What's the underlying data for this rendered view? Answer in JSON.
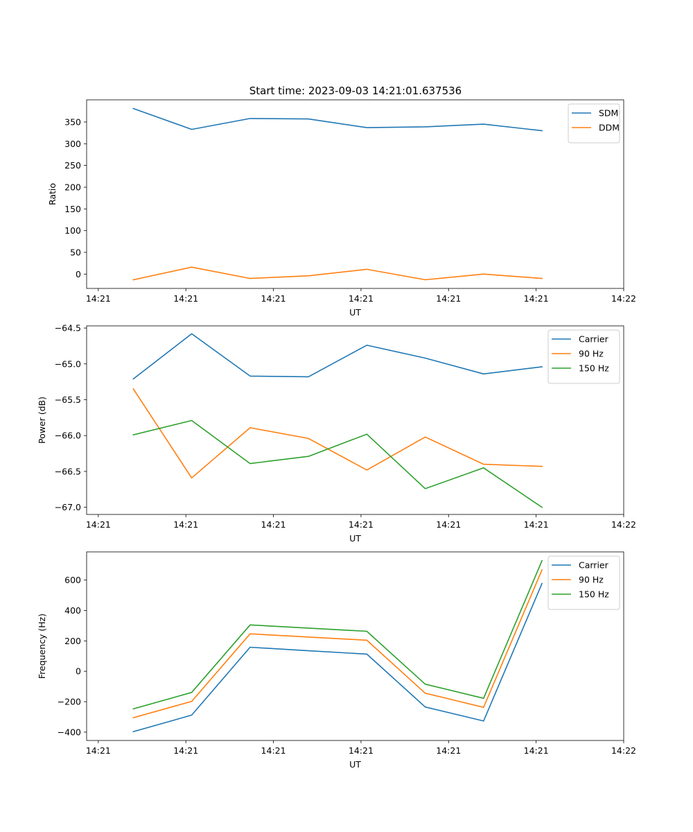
{
  "figure_title": "Start time: 2023-09-03 14:21:01.637536",
  "chart_data": [
    {
      "type": "line",
      "title": "Start time: 2023-09-03 14:21:01.637536",
      "xlabel": "UT",
      "ylabel": "Ratio",
      "x": [
        1,
        2,
        3,
        4,
        5,
        6,
        7,
        8
      ],
      "xlim": [
        0.2,
        9.4
      ],
      "xticks": [
        0.4,
        1.9,
        3.4,
        4.9,
        6.4,
        7.9,
        9.4
      ],
      "xtick_labels": [
        "14:21",
        "14:21",
        "14:21",
        "14:21",
        "14:21",
        "14:21",
        "14:22"
      ],
      "ylim": [
        -33,
        401
      ],
      "yticks": [
        0,
        50,
        100,
        150,
        200,
        250,
        300,
        350
      ],
      "ytick_labels": [
        "0",
        "50",
        "100",
        "150",
        "200",
        "250",
        "300",
        "350"
      ],
      "legend_position": "top-right",
      "series": [
        {
          "name": "SDM",
          "color": "#1f77b4",
          "values": [
            381,
            333,
            358,
            357,
            337,
            339,
            345,
            330
          ]
        },
        {
          "name": "DDM",
          "color": "#ff7f0e",
          "values": [
            -13,
            16,
            -10,
            -4,
            11,
            -13,
            0,
            -10
          ]
        }
      ]
    },
    {
      "type": "line",
      "title": "",
      "xlabel": "UT",
      "ylabel": "Power (dB)",
      "x": [
        1,
        2,
        3,
        4,
        5,
        6,
        7,
        8
      ],
      "xlim": [
        0.2,
        9.4
      ],
      "xticks": [
        0.4,
        1.9,
        3.4,
        4.9,
        6.4,
        7.9,
        9.4
      ],
      "xtick_labels": [
        "14:21",
        "14:21",
        "14:21",
        "14:21",
        "14:21",
        "14:21",
        "14:22"
      ],
      "ylim": [
        -67.1,
        -64.47
      ],
      "yticks": [
        -67.0,
        -66.5,
        -66.0,
        -65.5,
        -65.0,
        -64.5
      ],
      "ytick_labels": [
        "−67.0",
        "−66.5",
        "−66.0",
        "−65.5",
        "−65.0",
        "−64.5"
      ],
      "legend_position": "top-right",
      "series": [
        {
          "name": "Carrier",
          "color": "#1f77b4",
          "values": [
            -65.21,
            -64.58,
            -65.17,
            -65.18,
            -64.74,
            -64.92,
            -65.14,
            -65.04
          ]
        },
        {
          "name": "90 Hz",
          "color": "#ff7f0e",
          "values": [
            -65.35,
            -66.59,
            -65.89,
            -66.04,
            -66.48,
            -66.02,
            -66.4,
            -66.43
          ]
        },
        {
          "name": "150 Hz",
          "color": "#2ca02c",
          "values": [
            -65.99,
            -65.79,
            -66.39,
            -66.29,
            -65.98,
            -66.74,
            -66.45,
            -67.0
          ]
        }
      ]
    },
    {
      "type": "line",
      "title": "",
      "xlabel": "UT",
      "ylabel": "Frequency (Hz)",
      "x": [
        1,
        2,
        3,
        4,
        5,
        6,
        7,
        8
      ],
      "xlim": [
        0.2,
        9.4
      ],
      "xticks": [
        0.4,
        1.9,
        3.4,
        4.9,
        6.4,
        7.9,
        9.4
      ],
      "xtick_labels": [
        "14:21",
        "14:21",
        "14:21",
        "14:21",
        "14:21",
        "14:21",
        "14:22"
      ],
      "ylim": [
        -455,
        785
      ],
      "yticks": [
        -400,
        -200,
        0,
        200,
        400,
        600
      ],
      "ytick_labels": [
        "−400",
        "−200",
        "0",
        "200",
        "400",
        "600"
      ],
      "legend_position": "top-right",
      "series": [
        {
          "name": "Carrier",
          "color": "#1f77b4",
          "values": [
            -397,
            -288,
            158,
            135,
            113,
            -235,
            -327,
            577
          ]
        },
        {
          "name": "90 Hz",
          "color": "#ff7f0e",
          "values": [
            -305,
            -198,
            246,
            225,
            204,
            -144,
            -237,
            667
          ]
        },
        {
          "name": "150 Hz",
          "color": "#2ca02c",
          "values": [
            -247,
            -139,
            305,
            284,
            263,
            -85,
            -178,
            727
          ]
        }
      ]
    }
  ]
}
